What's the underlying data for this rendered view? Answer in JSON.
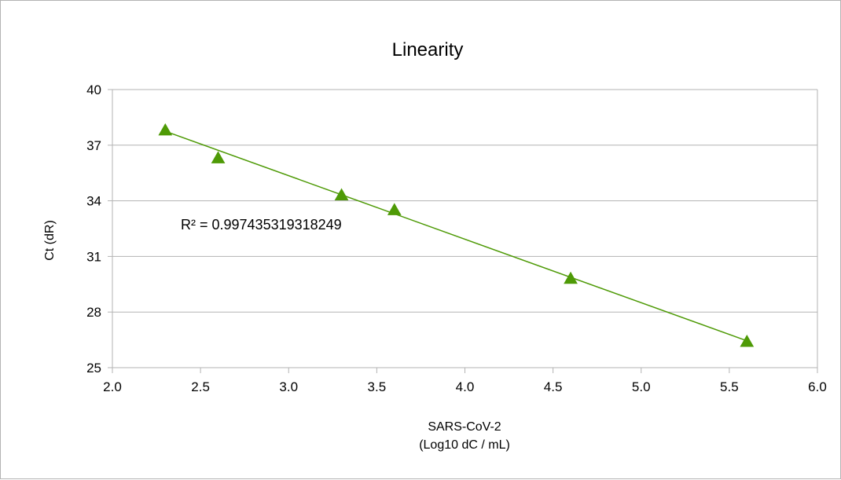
{
  "chart_data": {
    "type": "scatter",
    "title": "Linearity",
    "xlabel_lines": [
      "SARS-CoV-2",
      "(Log10 dC / mL)"
    ],
    "ylabel": "Ct (dR)",
    "xlim": [
      2.0,
      6.0
    ],
    "ylim": [
      25,
      40
    ],
    "x_ticks": [
      "2.0",
      "2.5",
      "3.0",
      "3.5",
      "4.0",
      "4.5",
      "5.0",
      "5.5",
      "6.0"
    ],
    "y_ticks": [
      "25",
      "28",
      "31",
      "34",
      "37",
      "40"
    ],
    "grid": "horizontal",
    "legend": "none",
    "series": [
      {
        "x": [
          2.3,
          2.6,
          3.3,
          3.6,
          4.6,
          5.6
        ],
        "y": [
          37.8,
          36.3,
          34.3,
          33.5,
          29.8,
          26.4
        ],
        "marker": "triangle",
        "color": "#4e9a06"
      }
    ],
    "trendline": {
      "type": "linear",
      "color": "#4e9a06",
      "from": [
        2.3,
        37.75
      ],
      "to": [
        5.6,
        26.45
      ]
    },
    "annotation": "R² = 0.997435319318249"
  }
}
